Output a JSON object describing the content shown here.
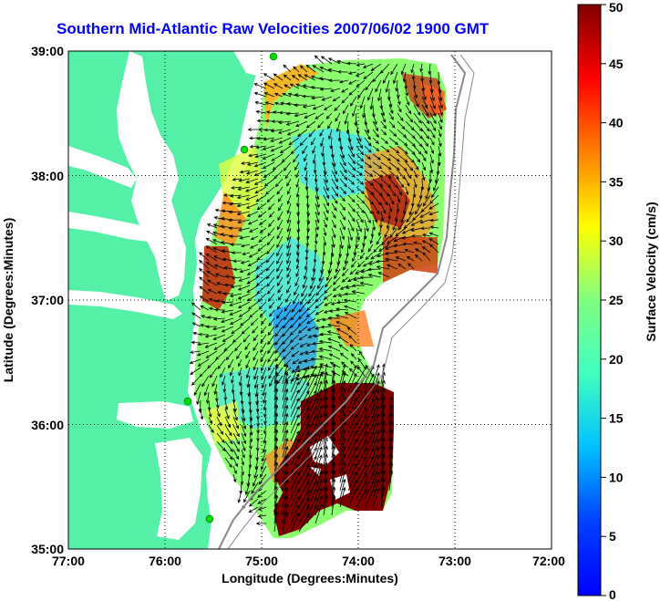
{
  "title": "Southern Mid-Atlantic Raw Velocities 2007/06/02 1900 GMT",
  "map": {
    "xlabel": "Longitude (Degrees:Minutes)",
    "ylabel": "Latitude (Degrees:Minutes)",
    "lon_ticks": [
      "77:00",
      "76:00",
      "75:00",
      "74:00",
      "73:00",
      "72:00"
    ],
    "lat_ticks": [
      "39:00",
      "38:00",
      "37:00",
      "36:00",
      "35:00"
    ],
    "lon_range": [
      -77,
      -72
    ],
    "lat_range": [
      35,
      39
    ],
    "grid": true,
    "land_color": "#55f0a8",
    "arrow_color": "#000000"
  },
  "colorbar": {
    "label": "Surface Velocity (cm/s)",
    "ticks": [
      "0",
      "5",
      "10",
      "15",
      "20",
      "25",
      "30",
      "35",
      "40",
      "45",
      "50"
    ],
    "range": [
      0,
      50
    ],
    "colormap": "jet"
  }
}
